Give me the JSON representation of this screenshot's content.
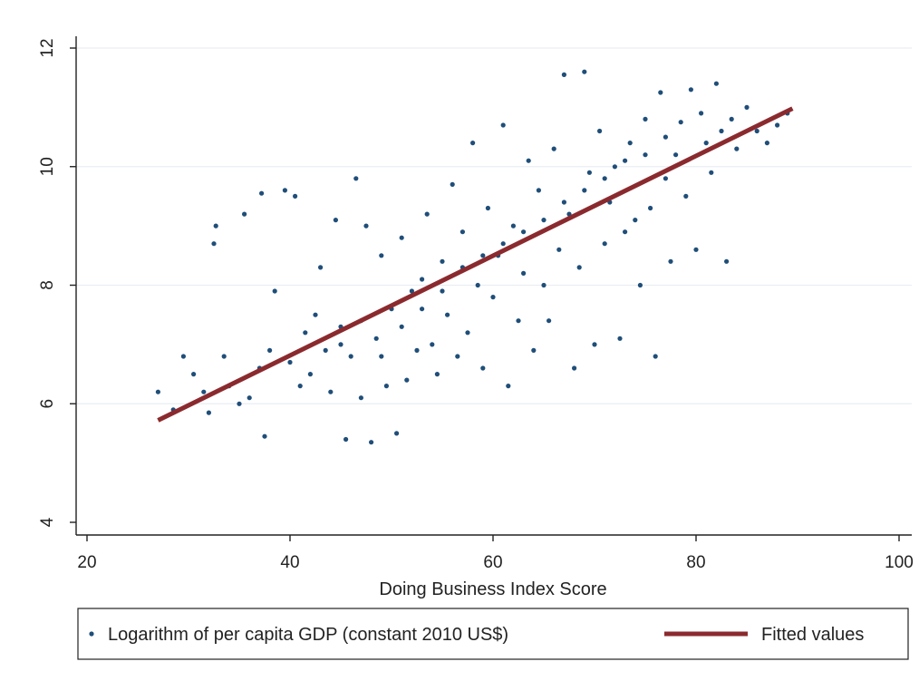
{
  "chart_data": {
    "type": "scatter",
    "title": "",
    "xlabel": "Doing Business Index Score",
    "ylabel": "",
    "xlim": [
      20,
      100
    ],
    "ylim": [
      4,
      12
    ],
    "x_ticks": [
      20,
      40,
      60,
      80,
      100
    ],
    "y_ticks": [
      4,
      6,
      8,
      10,
      12
    ],
    "grid": "horizontal",
    "legend_position": "bottom",
    "series": [
      {
        "name": "Logarithm of per capita GDP (constant 2010 US$)",
        "kind": "scatter",
        "color": "#1f4e79",
        "points": [
          [
            27.0,
            6.2
          ],
          [
            28.5,
            5.9
          ],
          [
            29.5,
            6.8
          ],
          [
            30.5,
            6.5
          ],
          [
            31.5,
            6.2
          ],
          [
            32.0,
            5.85
          ],
          [
            32.5,
            8.7
          ],
          [
            32.7,
            9.0
          ],
          [
            33.5,
            6.8
          ],
          [
            34.0,
            6.3
          ],
          [
            35.0,
            6.0
          ],
          [
            35.5,
            9.2
          ],
          [
            36.0,
            6.1
          ],
          [
            37.0,
            6.6
          ],
          [
            37.2,
            9.55
          ],
          [
            37.5,
            5.45
          ],
          [
            38.0,
            6.9
          ],
          [
            38.5,
            7.9
          ],
          [
            39.5,
            9.6
          ],
          [
            40.0,
            6.7
          ],
          [
            40.5,
            9.5
          ],
          [
            41.0,
            6.3
          ],
          [
            41.5,
            7.2
          ],
          [
            42.0,
            6.5
          ],
          [
            42.5,
            7.5
          ],
          [
            43.0,
            8.3
          ],
          [
            43.5,
            6.9
          ],
          [
            44.0,
            6.2
          ],
          [
            44.5,
            9.1
          ],
          [
            45.0,
            7.3
          ],
          [
            45.5,
            5.4
          ],
          [
            46.0,
            6.8
          ],
          [
            46.5,
            9.8
          ],
          [
            47.0,
            6.1
          ],
          [
            47.5,
            9.0
          ],
          [
            48.0,
            5.35
          ],
          [
            48.5,
            7.1
          ],
          [
            49.0,
            8.5
          ],
          [
            49.5,
            6.3
          ],
          [
            50.0,
            7.6
          ],
          [
            50.5,
            5.5
          ],
          [
            51.0,
            8.8
          ],
          [
            51.5,
            6.4
          ],
          [
            52.0,
            7.9
          ],
          [
            52.5,
            6.9
          ],
          [
            53.0,
            8.1
          ],
          [
            53.5,
            9.2
          ],
          [
            54.0,
            7.0
          ],
          [
            54.5,
            6.5
          ],
          [
            55.0,
            8.4
          ],
          [
            55.5,
            7.5
          ],
          [
            56.0,
            9.7
          ],
          [
            56.5,
            6.8
          ],
          [
            57.0,
            8.9
          ],
          [
            57.5,
            7.2
          ],
          [
            58.0,
            10.4
          ],
          [
            58.5,
            8.0
          ],
          [
            59.0,
            6.6
          ],
          [
            59.5,
            9.3
          ],
          [
            60.0,
            7.8
          ],
          [
            60.5,
            8.5
          ],
          [
            61.0,
            10.7
          ],
          [
            61.5,
            6.3
          ],
          [
            62.0,
            9.0
          ],
          [
            62.5,
            7.4
          ],
          [
            63.0,
            8.2
          ],
          [
            63.5,
            10.1
          ],
          [
            64.0,
            6.9
          ],
          [
            64.5,
            9.6
          ],
          [
            65.0,
            8.0
          ],
          [
            65.5,
            7.4
          ],
          [
            66.0,
            10.3
          ],
          [
            66.5,
            8.6
          ],
          [
            67.0,
            11.55
          ],
          [
            67.5,
            9.2
          ],
          [
            68.0,
            6.6
          ],
          [
            68.5,
            8.3
          ],
          [
            69.0,
            11.6
          ],
          [
            69.5,
            9.9
          ],
          [
            70.0,
            7.0
          ],
          [
            70.5,
            10.6
          ],
          [
            71.0,
            8.7
          ],
          [
            71.5,
            9.4
          ],
          [
            72.0,
            10.0
          ],
          [
            72.5,
            7.1
          ],
          [
            73.0,
            8.9
          ],
          [
            73.5,
            10.4
          ],
          [
            74.0,
            9.1
          ],
          [
            74.5,
            8.0
          ],
          [
            75.0,
            10.8
          ],
          [
            75.5,
            9.3
          ],
          [
            76.0,
            6.8
          ],
          [
            76.5,
            11.25
          ],
          [
            77.0,
            9.8
          ],
          [
            77.5,
            8.4
          ],
          [
            78.0,
            10.2
          ],
          [
            78.5,
            10.75
          ],
          [
            79.0,
            9.5
          ],
          [
            79.5,
            11.3
          ],
          [
            80.0,
            8.6
          ],
          [
            80.5,
            10.9
          ],
          [
            81.0,
            10.4
          ],
          [
            81.5,
            9.9
          ],
          [
            82.0,
            11.4
          ],
          [
            82.5,
            10.6
          ],
          [
            83.0,
            8.4
          ],
          [
            83.5,
            10.8
          ],
          [
            84.0,
            10.3
          ],
          [
            85.0,
            11.0
          ],
          [
            86.0,
            10.6
          ],
          [
            87.0,
            10.4
          ],
          [
            88.0,
            10.7
          ],
          [
            89.0,
            10.9
          ],
          [
            45.0,
            7.0
          ],
          [
            47.0,
            7.4
          ],
          [
            49.0,
            6.8
          ],
          [
            51.0,
            7.3
          ],
          [
            53.0,
            7.6
          ],
          [
            55.0,
            7.9
          ],
          [
            57.0,
            8.3
          ],
          [
            59.0,
            8.5
          ],
          [
            61.0,
            8.7
          ],
          [
            63.0,
            8.9
          ],
          [
            65.0,
            9.1
          ],
          [
            67.0,
            9.4
          ],
          [
            69.0,
            9.6
          ],
          [
            71.0,
            9.8
          ],
          [
            73.0,
            10.1
          ],
          [
            75.0,
            10.2
          ],
          [
            77.0,
            10.5
          ]
        ]
      },
      {
        "name": "Fitted values",
        "kind": "line",
        "color": "#8b2a2e",
        "points": [
          [
            27.0,
            5.72
          ],
          [
            89.5,
            10.98
          ]
        ]
      }
    ]
  }
}
